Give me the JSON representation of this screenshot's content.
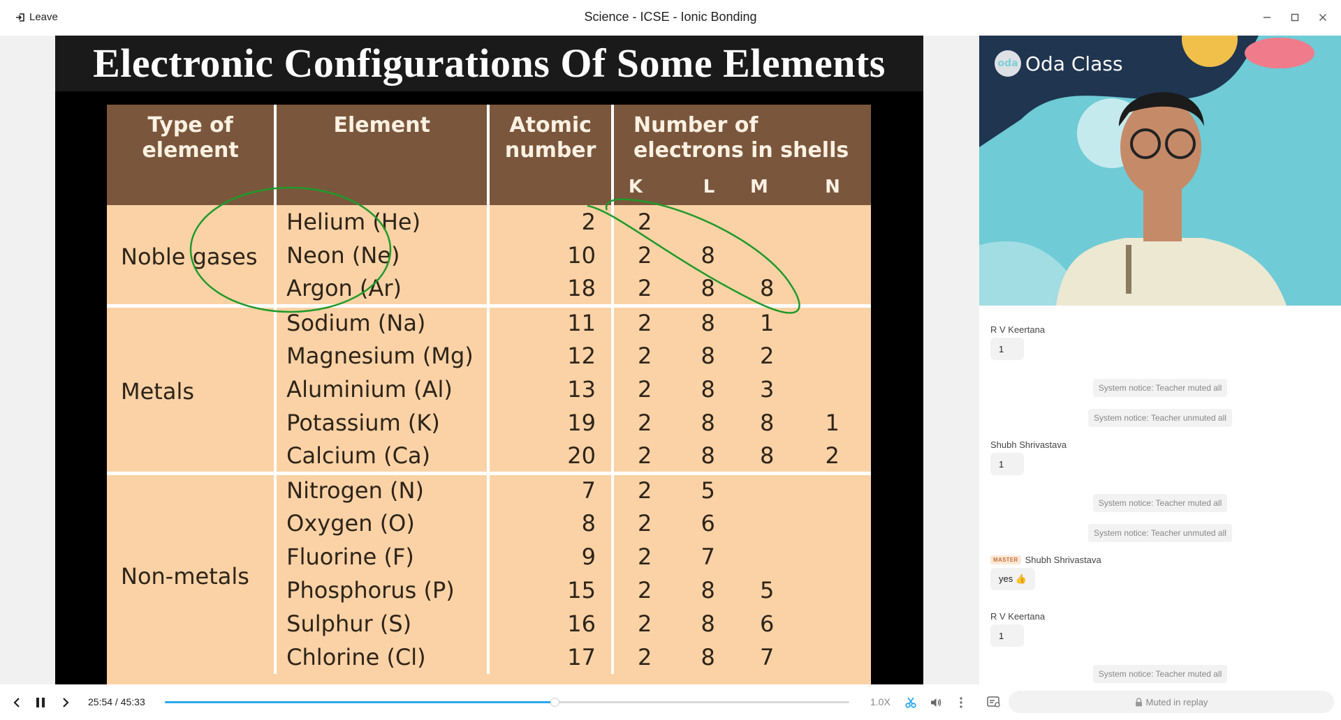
{
  "window": {
    "leave_label": "Leave",
    "title": "Science - ICSE - Ionic Bonding"
  },
  "slide": {
    "title": "Electronic Configurations Of Some Elements",
    "headers": {
      "type": "Type of element",
      "element": "Element",
      "atomic": "Atomic number",
      "shells": "Number of electrons in shells",
      "k": "K",
      "l": "L",
      "m": "M",
      "n": "N"
    },
    "rows": [
      {
        "type": "Noble gases",
        "element": "Helium (He)",
        "atomic": "2",
        "k": "2",
        "l": "",
        "m": "",
        "n": ""
      },
      {
        "type": "",
        "element": "Neon (Ne)",
        "atomic": "10",
        "k": "2",
        "l": "8",
        "m": "",
        "n": ""
      },
      {
        "type": "",
        "element": "Argon (Ar)",
        "atomic": "18",
        "k": "2",
        "l": "8",
        "m": "8",
        "n": ""
      },
      {
        "type": "Metals",
        "element": "Sodium (Na)",
        "atomic": "11",
        "k": "2",
        "l": "8",
        "m": "1",
        "n": ""
      },
      {
        "type": "",
        "element": "Magnesium (Mg)",
        "atomic": "12",
        "k": "2",
        "l": "8",
        "m": "2",
        "n": ""
      },
      {
        "type": "",
        "element": "Aluminium (Al)",
        "atomic": "13",
        "k": "2",
        "l": "8",
        "m": "3",
        "n": ""
      },
      {
        "type": "",
        "element": "Potassium (K)",
        "atomic": "19",
        "k": "2",
        "l": "8",
        "m": "8",
        "n": "1"
      },
      {
        "type": "",
        "element": "Calcium (Ca)",
        "atomic": "20",
        "k": "2",
        "l": "8",
        "m": "8",
        "n": "2"
      },
      {
        "type": "Non-metals",
        "element": "Nitrogen (N)",
        "atomic": "7",
        "k": "2",
        "l": "5",
        "m": "",
        "n": ""
      },
      {
        "type": "",
        "element": "Oxygen (O)",
        "atomic": "8",
        "k": "2",
        "l": "6",
        "m": "",
        "n": ""
      },
      {
        "type": "",
        "element": "Fluorine (F)",
        "atomic": "9",
        "k": "2",
        "l": "7",
        "m": "",
        "n": ""
      },
      {
        "type": "",
        "element": "Phosphorus (P)",
        "atomic": "15",
        "k": "2",
        "l": "8",
        "m": "5",
        "n": ""
      },
      {
        "type": "",
        "element": "Sulphur (S)",
        "atomic": "16",
        "k": "2",
        "l": "8",
        "m": "6",
        "n": ""
      },
      {
        "type": "",
        "element": "Chlorine (Cl)",
        "atomic": "17",
        "k": "2",
        "l": "8",
        "m": "7",
        "n": ""
      }
    ],
    "corner_logo": "oda"
  },
  "player": {
    "time": "25:54 / 45:33",
    "progress": 0.569,
    "speed": "1.0X",
    "accent_color": "#2aa8f0"
  },
  "video": {
    "logo_mark": "oda",
    "logo_text": "Oda Class"
  },
  "chat": {
    "messages": [
      {
        "kind": "user",
        "name": "R V Keertana",
        "text": "1"
      },
      {
        "kind": "notice",
        "text": "System notice: Teacher muted all"
      },
      {
        "kind": "notice",
        "text": "System notice: Teacher unmuted all"
      },
      {
        "kind": "user",
        "name": "Shubh Shrivastava",
        "text": "1"
      },
      {
        "kind": "notice",
        "text": "System notice: Teacher muted all"
      },
      {
        "kind": "notice",
        "text": "System notice: Teacher unmuted all"
      },
      {
        "kind": "user",
        "name": "Shubh Shrivastava",
        "tag": "MASTER",
        "text": "yes 👍"
      },
      {
        "kind": "user",
        "name": "R V Keertana",
        "text": "1"
      },
      {
        "kind": "notice",
        "text": "System notice: Teacher muted all"
      }
    ],
    "muted_label": "Muted in replay"
  }
}
